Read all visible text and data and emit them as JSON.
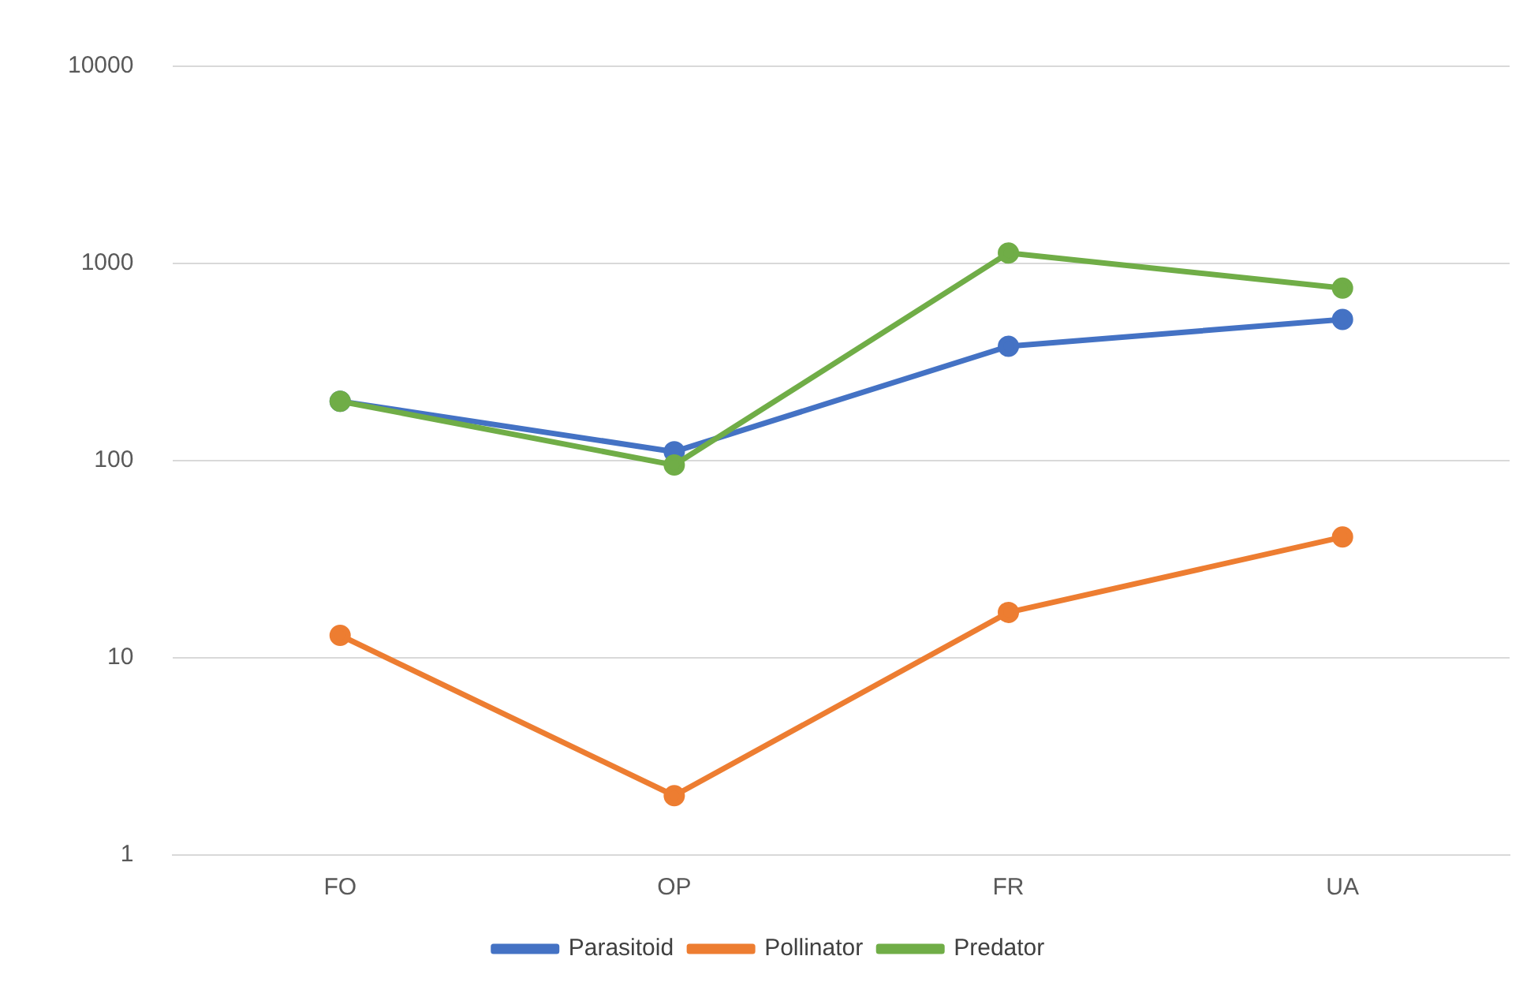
{
  "chart_data": {
    "type": "line",
    "categories": [
      "FO",
      "OP",
      "FR",
      "UA"
    ],
    "series": [
      {
        "name": "Parasitoid",
        "color": "#4472c4",
        "values": [
          200,
          111,
          380,
          520
        ]
      },
      {
        "name": "Pollinator",
        "color": "#ed7d31",
        "values": [
          13,
          2,
          17,
          41
        ]
      },
      {
        "name": "Predator",
        "color": "#70ad47",
        "values": [
          200,
          95,
          1130,
          750
        ]
      }
    ],
    "log": "y",
    "ylim": [
      1,
      10000
    ],
    "yticks": [
      1,
      10,
      100,
      1000,
      10000
    ],
    "grid": "y",
    "legend": "bottom",
    "marker": "circle",
    "line_style": "solid"
  }
}
